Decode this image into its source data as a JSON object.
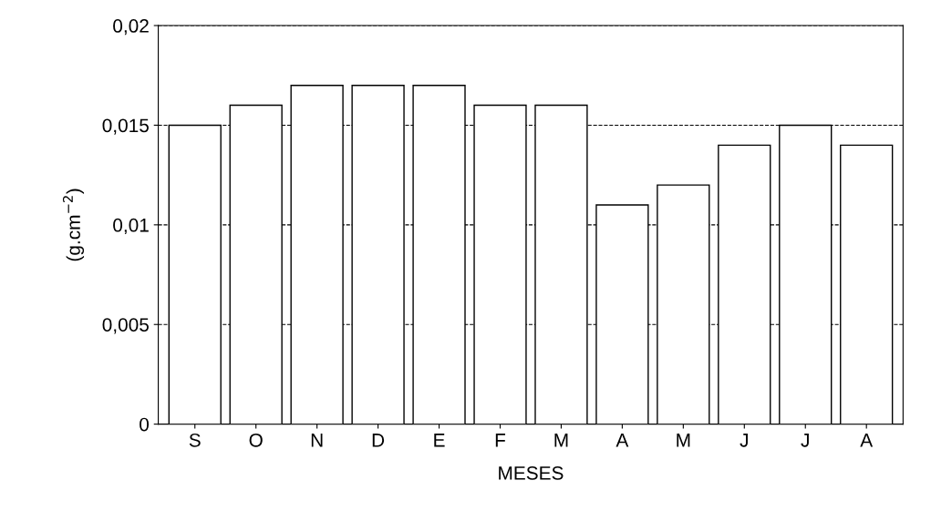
{
  "chart_data": {
    "type": "bar",
    "xlabel": "MESES",
    "ylabel": "(g.cm$^{−2}$)",
    "categories": [
      "S",
      "O",
      "N",
      "D",
      "E",
      "F",
      "M",
      "A",
      "M",
      "J",
      "J",
      "A"
    ],
    "values": [
      0.015,
      0.016,
      0.017,
      0.017,
      0.017,
      0.016,
      0.016,
      0.011,
      0.012,
      0.014,
      0.015,
      0.014
    ],
    "color": "#ffffff",
    "ylim": [
      0,
      0.02
    ],
    "yticks": [
      {
        "value": 0,
        "label": "0"
      },
      {
        "value": 0.005,
        "label": "0,005"
      },
      {
        "value": 0.01,
        "label": "0,01"
      },
      {
        "value": 0.015,
        "label": "0,015"
      },
      {
        "value": 0.02,
        "label": "0,02"
      }
    ],
    "grid": "y"
  }
}
